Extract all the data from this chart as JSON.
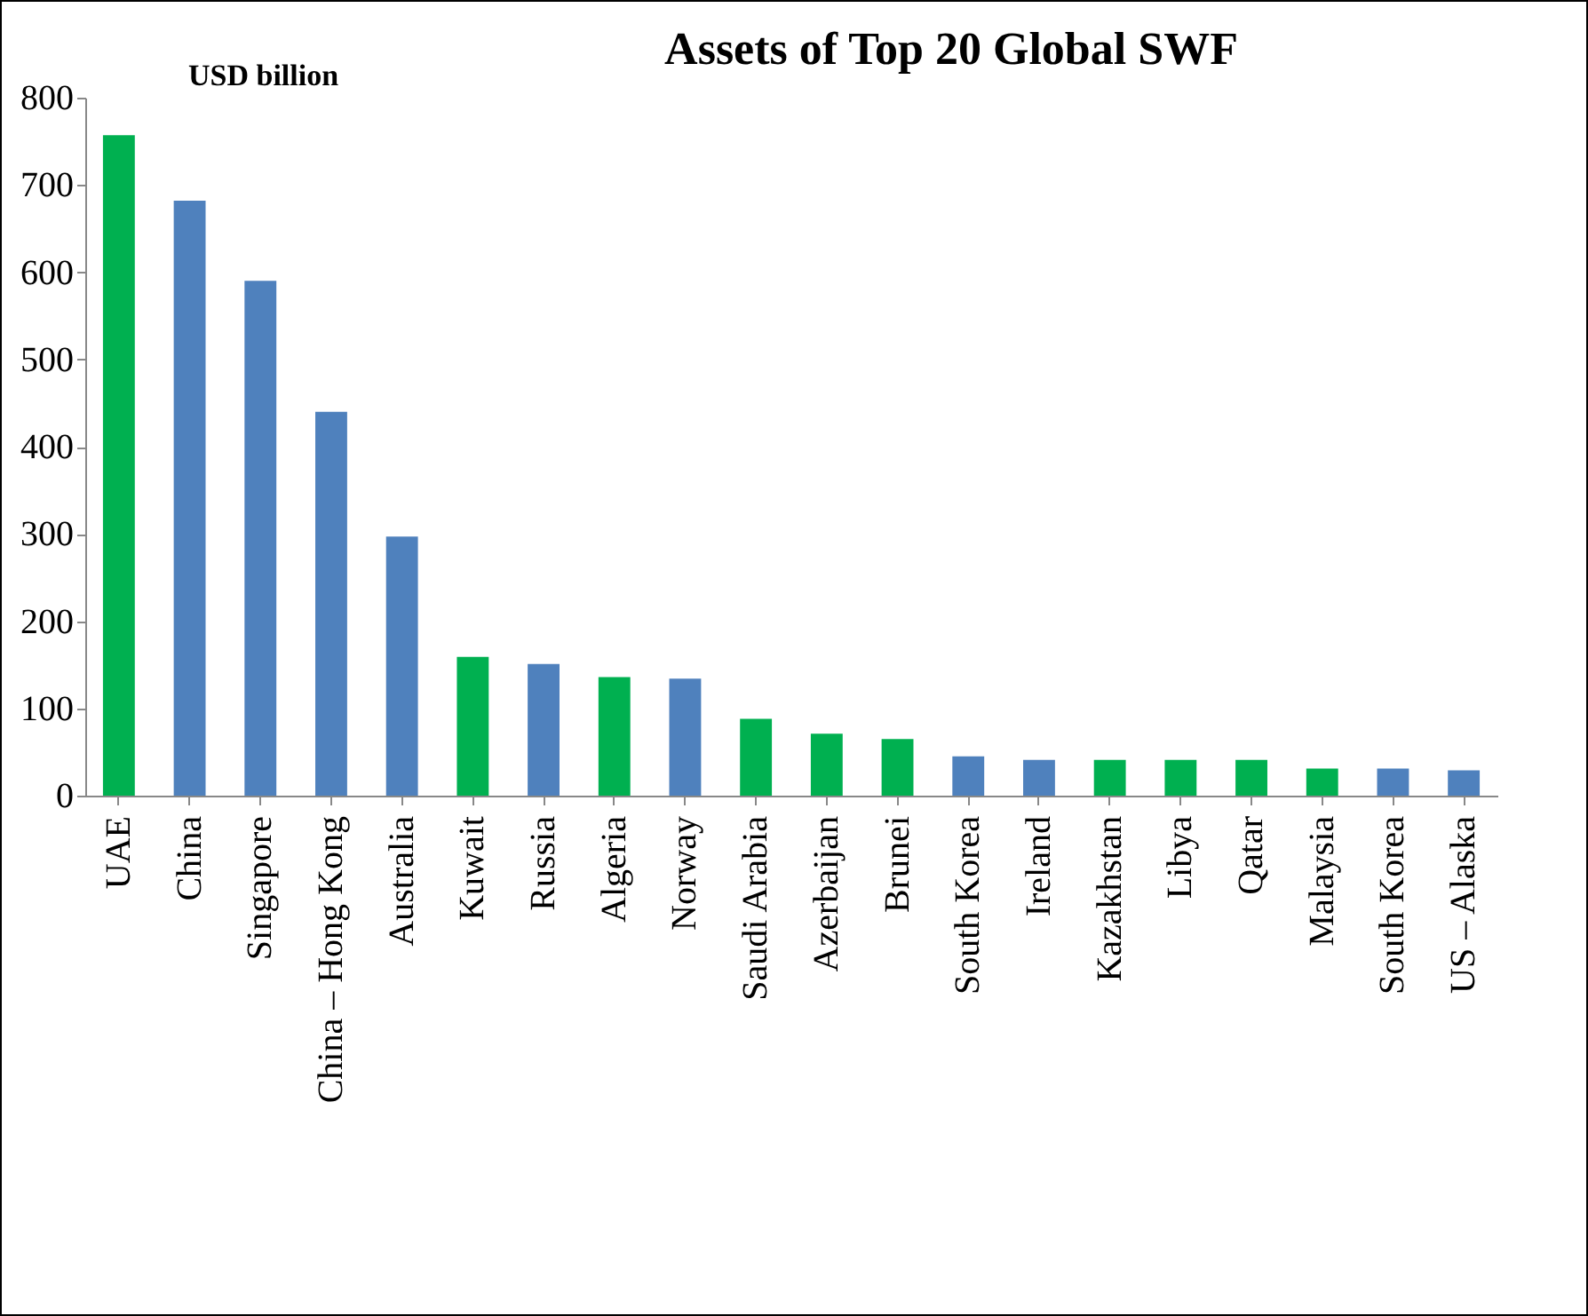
{
  "chart_data": {
    "type": "bar",
    "title": "Assets of Top 20 Global SWF",
    "annotations": [
      "USD billion"
    ],
    "categories": [
      "UAE",
      "China",
      "Singapore",
      "China – Hong Kong",
      "Australia",
      "Kuwait",
      "Russia",
      "Algeria",
      "Norway",
      "Saudi Arabia",
      "Azerbaijan",
      "Brunei",
      "South Korea",
      "Ireland",
      "Kazakhstan",
      "Libya",
      "Qatar",
      "Malaysia",
      "South Korea",
      "US – Alaska"
    ],
    "values": [
      757,
      682,
      590,
      440,
      297,
      159,
      151,
      136,
      134,
      88,
      71,
      65,
      45,
      41,
      41,
      41,
      41,
      31,
      31,
      29
    ],
    "colors": [
      "#00b050",
      "#4f81bd",
      "#4f81bd",
      "#4f81bd",
      "#4f81bd",
      "#00b050",
      "#4f81bd",
      "#00b050",
      "#4f81bd",
      "#00b050",
      "#00b050",
      "#00b050",
      "#4f81bd",
      "#4f81bd",
      "#00b050",
      "#00b050",
      "#00b050",
      "#00b050",
      "#4f81bd",
      "#4f81bd"
    ],
    "ylim": [
      0,
      800
    ],
    "yticks": [
      0,
      100,
      200,
      300,
      400,
      500,
      600,
      700,
      800
    ],
    "grid": false,
    "legend": false
  }
}
